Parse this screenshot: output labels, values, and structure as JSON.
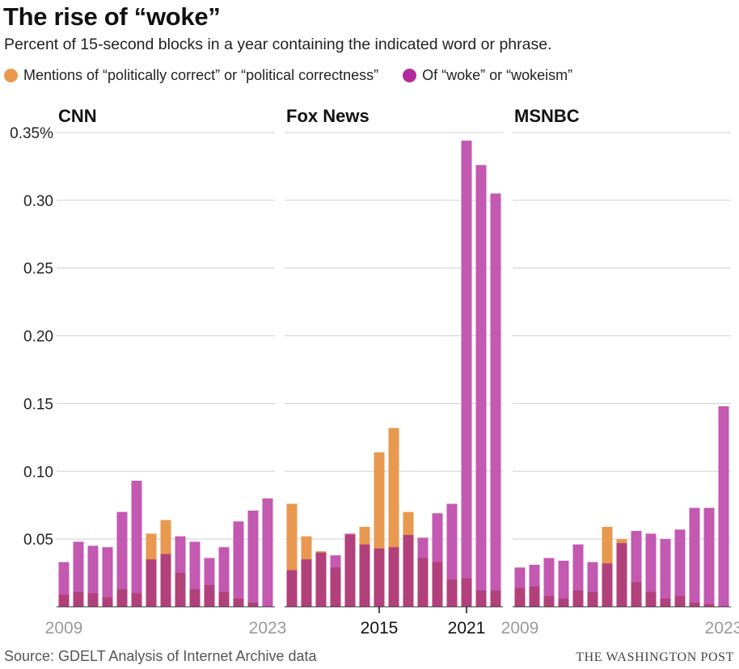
{
  "title": "The rise of “woke”",
  "subtitle": "Percent of 15-second blocks in a year containing the indicated word or phrase.",
  "legend": {
    "pc_label": "Mentions of “politically correct” or “political correctness”",
    "woke_label": "Of “woke” or “wokeism”"
  },
  "source": "Source: GDELT Analysis of Internet Archive data",
  "credit": "THE WASHINGTON POST",
  "colors": {
    "pc": "#e8994f",
    "woke": "#c359b1",
    "overlap": "#b2407a",
    "grid": "#d0d0d0",
    "axis_text": "#222222",
    "year_light": "#9a9a9a",
    "year_dark": "#111111"
  },
  "chart_data": {
    "type": "bar",
    "ylim": [
      0,
      0.35
    ],
    "yticks": [
      0.05,
      0.1,
      0.15,
      0.2,
      0.25,
      0.3,
      0.35
    ],
    "ytick_labels": [
      "0.05",
      "0.10",
      "0.15",
      "0.20",
      "0.25",
      "0.30",
      "0.35%"
    ],
    "x": [
      2009,
      2010,
      2011,
      2012,
      2013,
      2014,
      2015,
      2016,
      2017,
      2018,
      2019,
      2020,
      2021,
      2022,
      2023
    ],
    "panels": [
      {
        "name": "CNN",
        "xtick_labels": [
          {
            "year": 2009,
            "label": "2009",
            "style": "light"
          },
          {
            "year": 2023,
            "label": "2023",
            "style": "light"
          }
        ],
        "series": [
          {
            "name": "Mentions of “politically correct” or “political correctness”",
            "values": [
              0.009,
              0.011,
              0.01,
              0.007,
              0.013,
              0.01,
              0.054,
              0.064,
              0.025,
              0.013,
              0.016,
              0.011,
              0.006,
              0.003,
              0.0
            ]
          },
          {
            "name": "Of “woke” or “wokeism”",
            "values": [
              0.033,
              0.048,
              0.045,
              0.044,
              0.07,
              0.093,
              0.035,
              0.039,
              0.052,
              0.048,
              0.036,
              0.044,
              0.063,
              0.071,
              0.08
            ]
          }
        ]
      },
      {
        "name": "Fox News",
        "xtick_labels": [
          {
            "year": 2015,
            "label": "2015",
            "style": "dark"
          },
          {
            "year": 2021,
            "label": "2021",
            "style": "dark"
          }
        ],
        "series": [
          {
            "name": "Mentions of “politically correct” or “political correctness”",
            "values": [
              0.076,
              0.052,
              0.041,
              0.029,
              0.053,
              0.059,
              0.114,
              0.132,
              0.07,
              0.036,
              0.033,
              0.02,
              0.021,
              0.012,
              0.012
            ]
          },
          {
            "name": "Of “woke” or “wokeism”",
            "values": [
              0.027,
              0.035,
              0.04,
              0.038,
              0.054,
              0.046,
              0.043,
              0.044,
              0.053,
              0.051,
              0.069,
              0.076,
              0.344,
              0.326,
              0.305
            ]
          }
        ]
      },
      {
        "name": "MSNBC",
        "xtick_labels": [
          {
            "year": 2009,
            "label": "2009",
            "style": "light"
          },
          {
            "year": 2023,
            "label": "2023",
            "style": "light"
          }
        ],
        "series": [
          {
            "name": "Mentions of “politically correct” or “political correctness”",
            "values": [
              0.014,
              0.015,
              0.008,
              0.006,
              0.012,
              0.011,
              0.059,
              0.05,
              0.018,
              0.011,
              0.006,
              0.008,
              0.003,
              0.002,
              0.0
            ]
          },
          {
            "name": "Of “woke” or “wokeism”",
            "values": [
              0.029,
              0.031,
              0.036,
              0.034,
              0.046,
              0.033,
              0.032,
              0.047,
              0.056,
              0.054,
              0.05,
              0.057,
              0.073,
              0.073,
              0.148
            ]
          }
        ]
      }
    ]
  }
}
